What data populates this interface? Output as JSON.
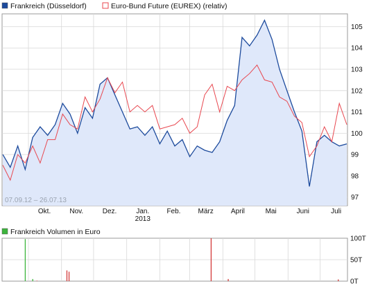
{
  "colors": {
    "series_blue": "#1c4a9c",
    "series_red": "#e8474f",
    "area_fill": "#dfe8fa",
    "volume_green": "#3cb43c",
    "volume_red": "#d33a3a",
    "grid": "#d8d8d8",
    "frame": "#9a9a9a"
  },
  "legend": {
    "series1": "Frankreich (Düsseldorf)",
    "series2": "Euro-Bund Future (EUREX) (relativ)",
    "volume": "Frankreich Volumen in Euro"
  },
  "date_range": "07.09.12 – 26.07.13",
  "chart_data": [
    {
      "type": "line",
      "title": "",
      "x_labels": [
        "Okt.",
        "Nov.",
        "Dez.",
        "Jan.",
        "Feb.",
        "März",
        "April",
        "Mai",
        "Juni",
        "Juli"
      ],
      "year_label": "2013",
      "y_ticks": [
        97,
        98,
        99,
        100,
        101,
        102,
        103,
        104,
        105
      ],
      "ylim": [
        96.6,
        105.6
      ],
      "grid": true,
      "series": [
        {
          "name": "Frankreich (Düsseldorf)",
          "area": true,
          "x": [
            "2012-09-07",
            "2012-09-14",
            "2012-09-21",
            "2012-09-28",
            "2012-10-05",
            "2012-10-12",
            "2012-10-19",
            "2012-10-26",
            "2012-11-02",
            "2012-11-09",
            "2012-11-16",
            "2012-11-23",
            "2012-11-30",
            "2012-12-07",
            "2012-12-14",
            "2012-12-21",
            "2012-12-28",
            "2013-01-04",
            "2013-01-11",
            "2013-01-18",
            "2013-01-25",
            "2013-02-01",
            "2013-02-08",
            "2013-02-15",
            "2013-02-22",
            "2013-03-01",
            "2013-03-08",
            "2013-03-15",
            "2013-03-22",
            "2013-03-29",
            "2013-04-05",
            "2013-04-12",
            "2013-04-19",
            "2013-04-26",
            "2013-05-03",
            "2013-05-10",
            "2013-05-17",
            "2013-05-24",
            "2013-05-31",
            "2013-06-07",
            "2013-06-14",
            "2013-06-21",
            "2013-06-28",
            "2013-07-05",
            "2013-07-12",
            "2013-07-19",
            "2013-07-26"
          ],
          "values": [
            99.0,
            98.4,
            99.4,
            98.3,
            99.8,
            100.3,
            99.9,
            100.4,
            101.4,
            100.9,
            100.0,
            101.2,
            100.7,
            102.3,
            102.6,
            101.8,
            101.0,
            100.2,
            100.3,
            99.9,
            100.3,
            99.5,
            100.1,
            99.4,
            99.7,
            98.9,
            99.4,
            99.2,
            99.1,
            99.6,
            100.6,
            101.3,
            104.5,
            104.1,
            104.6,
            105.3,
            104.4,
            103.0,
            102.0,
            101.0,
            100.1,
            97.5,
            99.6,
            99.9,
            99.6,
            99.4,
            99.5
          ]
        },
        {
          "name": "Euro-Bund Future (EUREX) (relativ)",
          "area": false,
          "x": [
            "2012-09-07",
            "2012-09-14",
            "2012-09-21",
            "2012-09-28",
            "2012-10-05",
            "2012-10-12",
            "2012-10-19",
            "2012-10-26",
            "2012-11-02",
            "2012-11-09",
            "2012-11-16",
            "2012-11-23",
            "2012-11-30",
            "2012-12-07",
            "2012-12-14",
            "2012-12-21",
            "2012-12-28",
            "2013-01-04",
            "2013-01-11",
            "2013-01-18",
            "2013-01-25",
            "2013-02-01",
            "2013-02-08",
            "2013-02-15",
            "2013-02-22",
            "2013-03-01",
            "2013-03-08",
            "2013-03-15",
            "2013-03-22",
            "2013-03-29",
            "2013-04-05",
            "2013-04-12",
            "2013-04-19",
            "2013-04-26",
            "2013-05-03",
            "2013-05-10",
            "2013-05-17",
            "2013-05-24",
            "2013-05-31",
            "2013-06-07",
            "2013-06-14",
            "2013-06-21",
            "2013-06-28",
            "2013-07-05",
            "2013-07-12",
            "2013-07-19",
            "2013-07-26"
          ],
          "values": [
            98.5,
            97.8,
            99.0,
            98.6,
            99.4,
            98.6,
            99.7,
            99.7,
            100.9,
            100.4,
            100.2,
            101.7,
            101.0,
            101.6,
            102.6,
            101.9,
            102.4,
            101.0,
            101.3,
            101.0,
            101.3,
            100.2,
            100.3,
            100.4,
            100.7,
            100.0,
            100.3,
            101.8,
            102.3,
            101.0,
            102.2,
            102.0,
            102.5,
            102.8,
            103.2,
            102.5,
            102.4,
            101.7,
            101.5,
            100.8,
            100.5,
            98.9,
            99.4,
            100.3,
            99.6,
            101.4,
            100.4
          ]
        }
      ]
    },
    {
      "type": "bar",
      "title": "Frankreich Volumen in Euro",
      "y_ticks": [
        "0T",
        "50T",
        "100T"
      ],
      "ylim": [
        0,
        100
      ],
      "series": [
        {
          "name": "Frankreich Volumen in Euro",
          "x": [
            "2012-09-28",
            "2012-10-05",
            "2012-10-09",
            "2012-11-06",
            "2012-11-08",
            "2013-03-21",
            "2013-04-06",
            "2013-07-18"
          ],
          "values": [
            98,
            5,
            1,
            25,
            22,
            100,
            5,
            4
          ],
          "colors": [
            "#3cb43c",
            "#3cb43c",
            "#d33a3a",
            "#d33a3a",
            "#d33a3a",
            "#d33a3a",
            "#d33a3a",
            "#d33a3a"
          ]
        }
      ]
    }
  ]
}
